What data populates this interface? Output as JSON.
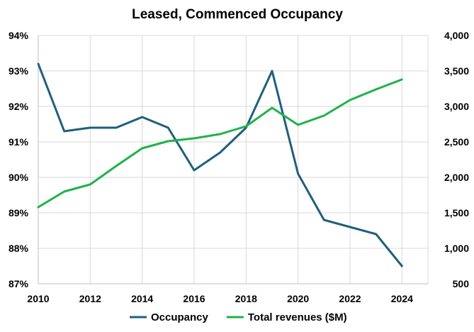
{
  "chart_data": {
    "type": "line",
    "title": "Leased, Commenced Occupancy",
    "x": [
      2010,
      2011,
      2012,
      2013,
      2014,
      2015,
      2016,
      2017,
      2018,
      2019,
      2020,
      2021,
      2022,
      2023,
      2024
    ],
    "x_ticks": [
      "2010",
      "2012",
      "2014",
      "2016",
      "2018",
      "2020",
      "2022",
      "2024"
    ],
    "xlim": [
      2010,
      2025
    ],
    "y_left": {
      "ylim": [
        87,
        94
      ],
      "ticks": [
        "87%",
        "88%",
        "89%",
        "90%",
        "91%",
        "92%",
        "93%",
        "94%"
      ]
    },
    "y_right": {
      "ylim": [
        500,
        4000
      ],
      "ticks": [
        "500",
        "1,000",
        "1,500",
        "2,000",
        "2,500",
        "3,000",
        "3,500",
        "4,000"
      ]
    },
    "grid": true,
    "legend_position": "bottom",
    "series": [
      {
        "name": "Occupancy",
        "axis": "left",
        "color": "#1f5f7f",
        "values": [
          93.2,
          91.3,
          91.4,
          91.4,
          91.7,
          91.4,
          90.2,
          90.7,
          91.4,
          93.0,
          90.1,
          88.8,
          88.6,
          88.4,
          87.5
        ]
      },
      {
        "name": "Total revenues ($M)",
        "axis": "right",
        "color": "#1fb24a",
        "values": [
          1580,
          1800,
          1900,
          2160,
          2410,
          2510,
          2550,
          2610,
          2720,
          2980,
          2740,
          2870,
          3090,
          3240,
          3380
        ]
      }
    ]
  }
}
